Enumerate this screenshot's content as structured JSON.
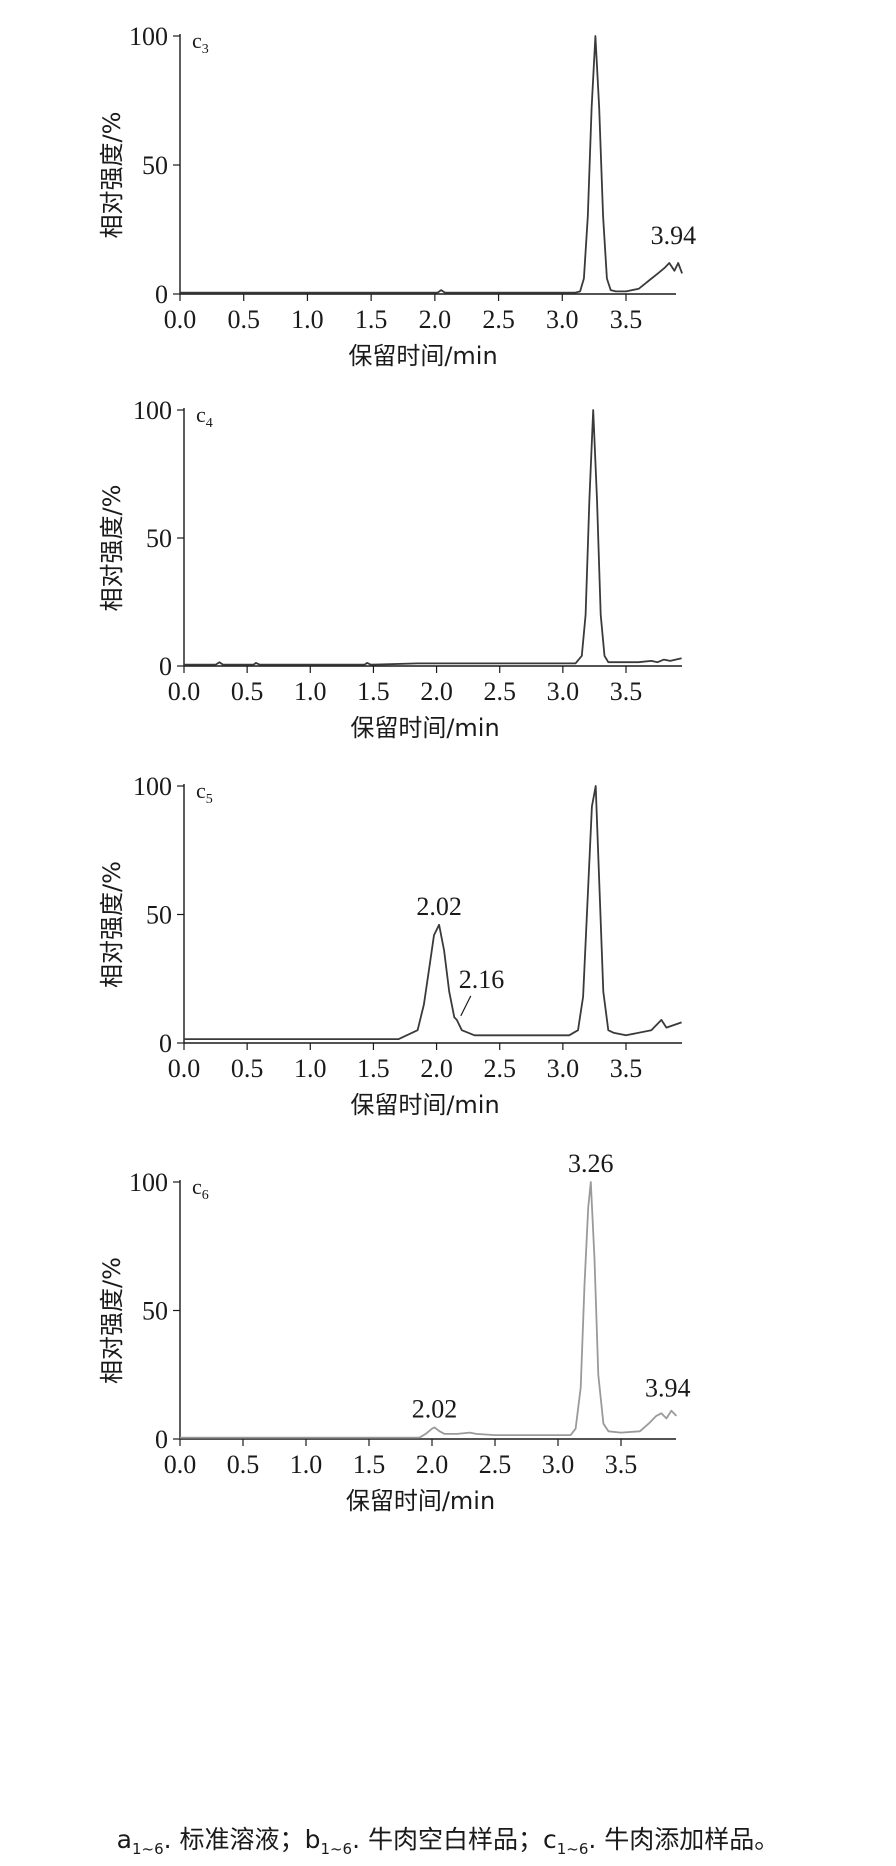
{
  "chart_data": [
    {
      "type": "line",
      "panel_label": "c",
      "panel_label_sub": "3",
      "xlabel": "保留时间/min",
      "ylabel": "相对强度/%",
      "xlim": [
        0,
        3.94
      ],
      "ylim": [
        0,
        100
      ],
      "x_ticks": [
        "0.0",
        "0.5",
        "1.0",
        "1.5",
        "2.0",
        "2.5",
        "3.0",
        "3.5"
      ],
      "y_ticks": [
        "0",
        "50",
        "100"
      ],
      "color": "#3a3a3a",
      "series": [
        {
          "x": [
            0,
            2.02,
            2.05,
            2.08,
            3.1,
            3.14,
            3.17,
            3.2,
            3.23,
            3.26,
            3.29,
            3.32,
            3.35,
            3.38,
            3.42,
            3.5,
            3.6,
            3.65,
            3.7,
            3.75,
            3.8,
            3.84,
            3.88,
            3.91,
            3.94
          ],
          "y": [
            0.5,
            0.5,
            1.5,
            0.5,
            0.5,
            1,
            6,
            30,
            72,
            100,
            72,
            30,
            6,
            1.5,
            1,
            1,
            2,
            4,
            6,
            8,
            10,
            12,
            9,
            12,
            8
          ]
        }
      ],
      "annotations": [
        {
          "text": "3.94",
          "x": 3.94,
          "y": 14
        }
      ]
    },
    {
      "type": "line",
      "panel_label": "c",
      "panel_label_sub": "4",
      "xlabel": "保留时间/min",
      "ylabel": "相对强度/%",
      "xlim": [
        0,
        3.94
      ],
      "ylim": [
        0,
        100
      ],
      "x_ticks": [
        "0.0",
        "0.5",
        "1.0",
        "1.5",
        "2.0",
        "2.5",
        "3.0",
        "3.5"
      ],
      "y_ticks": [
        "0",
        "50",
        "100"
      ],
      "color": "#3a3a3a",
      "series": [
        {
          "x": [
            0,
            0.25,
            0.28,
            0.31,
            0.55,
            0.57,
            0.6,
            1.43,
            1.45,
            1.48,
            1.85,
            2.2,
            2.45,
            2.7,
            2.85,
            3.1,
            3.15,
            3.18,
            3.21,
            3.24,
            3.27,
            3.3,
            3.33,
            3.36,
            3.4,
            3.6,
            3.7,
            3.75,
            3.8,
            3.85,
            3.94
          ],
          "y": [
            0.5,
            0.5,
            1.5,
            0.5,
            0.5,
            1.2,
            0.5,
            0.5,
            1.2,
            0.5,
            1,
            1,
            1,
            1,
            1,
            1,
            4,
            20,
            65,
            100,
            65,
            20,
            4,
            1.5,
            1.5,
            1.5,
            2,
            1.5,
            2.5,
            2,
            3
          ]
        }
      ],
      "annotations": []
    },
    {
      "type": "line",
      "panel_label": "c",
      "panel_label_sub": "5",
      "xlabel": "保留时间/min",
      "ylabel": "相对强度/%",
      "xlim": [
        0,
        3.94
      ],
      "ylim": [
        0,
        100
      ],
      "x_ticks": [
        "0.0",
        "0.5",
        "1.0",
        "1.5",
        "2.0",
        "2.5",
        "3.0",
        "3.5"
      ],
      "y_ticks": [
        "0",
        "50",
        "100"
      ],
      "color": "#3a3a3a",
      "series": [
        {
          "x": [
            0,
            0.5,
            1.0,
            1.4,
            1.7,
            1.85,
            1.9,
            1.95,
            1.98,
            2.02,
            2.06,
            2.1,
            2.14,
            2.16,
            2.2,
            2.3,
            2.5,
            2.8,
            3.05,
            3.12,
            3.16,
            3.2,
            3.23,
            3.26,
            3.29,
            3.32,
            3.36,
            3.4,
            3.5,
            3.7,
            3.78,
            3.82,
            3.88,
            3.94
          ],
          "y": [
            1.5,
            1.5,
            1.5,
            1.5,
            1.5,
            5,
            15,
            32,
            42,
            46,
            36,
            20,
            10,
            9,
            5,
            3,
            3,
            3,
            3,
            5,
            18,
            60,
            92,
            100,
            60,
            20,
            5,
            4,
            3,
            5,
            9,
            6,
            7,
            8
          ]
        }
      ],
      "annotations": [
        {
          "text": "2.02",
          "x": 2.02,
          "y": 46
        },
        {
          "text": "2.16",
          "x": 2.16,
          "y": 9
        }
      ]
    },
    {
      "type": "line",
      "panel_label": "c",
      "panel_label_sub": "6",
      "xlabel": "保留时间/min",
      "ylabel": "相对强度/%",
      "xlim": [
        0,
        3.94
      ],
      "ylim": [
        0,
        100
      ],
      "x_ticks": [
        "0.0",
        "0.5",
        "1.0",
        "1.5",
        "2.0",
        "2.5",
        "3.0",
        "3.5"
      ],
      "y_ticks": [
        "0",
        "50",
        "100"
      ],
      "color": "#9a9a9a",
      "series": [
        {
          "x": [
            0,
            1.9,
            1.95,
            2.0,
            2.02,
            2.06,
            2.1,
            2.2,
            2.3,
            2.35,
            2.5,
            3.1,
            3.14,
            3.18,
            3.21,
            3.24,
            3.26,
            3.29,
            3.32,
            3.36,
            3.4,
            3.5,
            3.65,
            3.72,
            3.78,
            3.82,
            3.86,
            3.9,
            3.94
          ],
          "y": [
            0.5,
            0.5,
            2,
            4,
            4.5,
            3,
            2,
            2,
            2.5,
            2,
            1.5,
            1.5,
            4,
            20,
            60,
            90,
            100,
            70,
            25,
            6,
            3,
            2.5,
            3,
            6,
            9,
            10,
            8,
            11,
            9
          ]
        }
      ],
      "annotations": [
        {
          "text": "2.02",
          "x": 2.02,
          "y": 4.5
        },
        {
          "text": "3.26",
          "x": 3.26,
          "y": 100
        },
        {
          "text": "3.94",
          "x": 3.94,
          "y": 11
        }
      ]
    }
  ],
  "caption": {
    "a_main": "a",
    "a_sub": "1~6",
    "a_text": ". 标准溶液；",
    "b_main": "b",
    "b_sub": "1~6",
    "b_text": ". 牛肉空白样品；",
    "c_main": "c",
    "c_sub": "1~6",
    "c_text": ". 牛肉添加样品。"
  }
}
